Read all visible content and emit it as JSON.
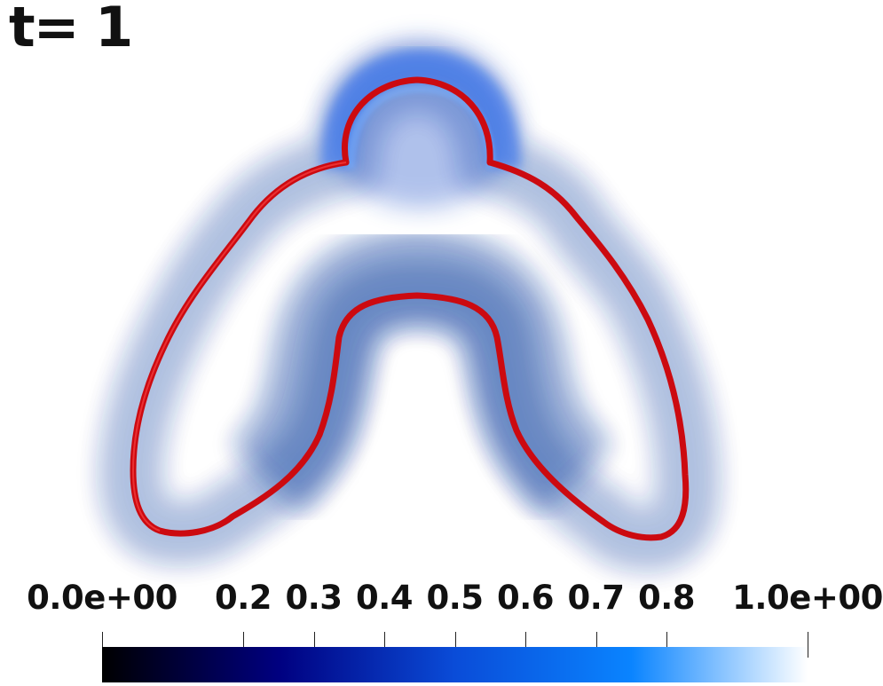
{
  "time_label": "t= 1",
  "colorbar": {
    "ticks": [
      {
        "label": "0.0e+00",
        "value": 0.0
      },
      {
        "label": "0.2",
        "value": 0.2
      },
      {
        "label": "0.3",
        "value": 0.3
      },
      {
        "label": "0.4",
        "value": 0.4
      },
      {
        "label": "0.5",
        "value": 0.5
      },
      {
        "label": "0.6",
        "value": 0.6
      },
      {
        "label": "0.7",
        "value": 0.7
      },
      {
        "label": "0.8",
        "value": 0.8
      },
      {
        "label": "1.0e+00",
        "value": 1.0
      }
    ],
    "range": [
      0,
      1
    ],
    "colormap": [
      "#000000",
      "#000080",
      "#0a4cd8",
      "#0a84ff",
      "#ffffff"
    ]
  },
  "colors": {
    "filament": "#cc0a10",
    "glow": "#1a5adf"
  }
}
